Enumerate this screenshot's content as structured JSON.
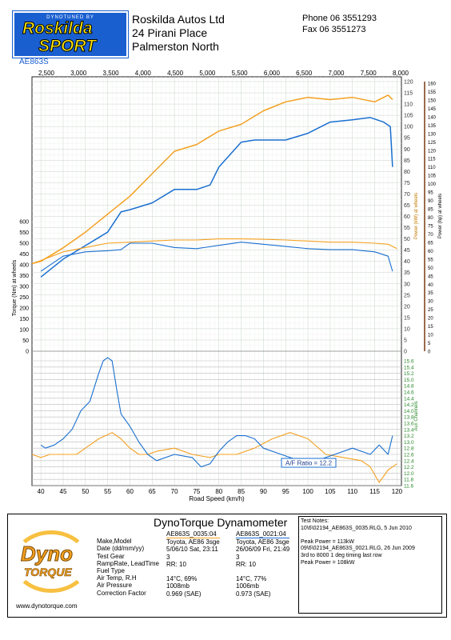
{
  "header": {
    "logo_top": "DYNOTUNED BY",
    "logo_line1": "Roskilda",
    "logo_line2": "SPORT",
    "address": [
      "Roskilda Autos Ltd",
      "24 Pirani Place",
      "Palmerston North"
    ],
    "phone": "Phone 06 3551293",
    "fax": "Fax    06 3551273",
    "code": "AE863S"
  },
  "chart_data": {
    "type": "line",
    "top_axis": {
      "label": "",
      "ticks": [
        "2,500",
        "3,000",
        "3,500",
        "4,000",
        "4,500",
        "5,000",
        "5,500",
        "6,000",
        "6,500",
        "7,000",
        "7,500",
        "8,000"
      ]
    },
    "x_axis": {
      "label": "Road Speed (km/h)",
      "ticks": [
        40,
        45,
        50,
        55,
        60,
        65,
        70,
        75,
        80,
        85,
        90,
        95,
        100,
        105,
        110,
        115,
        120
      ],
      "range": [
        38,
        121
      ]
    },
    "left_axis": {
      "label": "Torque (Nm) at wheels",
      "ticks": [
        0,
        50,
        100,
        150,
        200,
        250,
        300,
        350,
        400,
        450,
        500,
        550,
        600
      ],
      "range": [
        0,
        600
      ]
    },
    "power_axis": {
      "label": "Power (kW) at wheels",
      "ticks": [
        0,
        5,
        10,
        15,
        20,
        25,
        30,
        35,
        40,
        45,
        50,
        55,
        60,
        65,
        70,
        75,
        80,
        85,
        90,
        95,
        100,
        105,
        110,
        115,
        120
      ],
      "range": [
        0,
        120
      ]
    },
    "power_hp_axis": {
      "label": "Power (hp) at wheels",
      "ticks": [
        0,
        5,
        10,
        15,
        20,
        25,
        30,
        35,
        40,
        45,
        50,
        55,
        60,
        65,
        70,
        75,
        80,
        85,
        90,
        95,
        100,
        105,
        110,
        115,
        120,
        125,
        130,
        135,
        140,
        145,
        150,
        155,
        160
      ]
    },
    "aux_axis": {
      "label": "Aux Channels",
      "ticks": [
        "11.6",
        "11.8",
        "12.0",
        "12.2",
        "12.4",
        "12.6",
        "12.8",
        "13.0",
        "13.2",
        "13.4",
        "13.6",
        "13.8",
        "14.0",
        "14.2",
        "14.4",
        "14.6",
        "14.8",
        "15.0",
        "15.2",
        "15.4",
        "15.6"
      ],
      "range": [
        11.6,
        15.6
      ]
    },
    "annotation": "A/F Ratio = 12.2",
    "series": [
      {
        "name": "AE863S_0035:04",
        "color": "#f5a020",
        "kind": "power",
        "x": [
          38,
          40,
          45,
          50,
          55,
          60,
          65,
          70,
          75,
          80,
          85,
          90,
          95,
          100,
          105,
          110,
          115,
          118,
          119
        ],
        "y": [
          39,
          40,
          46,
          53,
          61,
          69,
          79,
          89,
          92,
          98,
          101,
          107,
          111,
          113,
          112,
          113,
          111,
          114,
          112
        ]
      },
      {
        "name": "AE863S_0021:04",
        "color": "#1a6fd0",
        "kind": "power",
        "x": [
          40,
          45,
          50,
          55,
          58,
          60,
          65,
          70,
          75,
          78,
          80,
          85,
          88,
          90,
          95,
          100,
          105,
          110,
          114,
          117,
          118.5,
          119
        ],
        "y": [
          33,
          41,
          47,
          53,
          62,
          63,
          66,
          72,
          72,
          74,
          82,
          93,
          94,
          94,
          94,
          97,
          102,
          103,
          104,
          102,
          100,
          82
        ]
      },
      {
        "name": "AE863S_0035:04",
        "color": "#f5a020",
        "kind": "torque",
        "x": [
          38,
          40,
          45,
          50,
          55,
          60,
          65,
          70,
          75,
          80,
          85,
          90,
          95,
          100,
          105,
          110,
          115,
          118,
          120
        ],
        "y": [
          405,
          420,
          460,
          480,
          500,
          505,
          510,
          515,
          515,
          520,
          520,
          518,
          515,
          510,
          505,
          505,
          500,
          495,
          475
        ]
      },
      {
        "name": "AE863S_0021:04",
        "color": "#1a6fd0",
        "kind": "torque",
        "x": [
          40,
          45,
          50,
          55,
          58,
          60,
          65,
          70,
          75,
          80,
          85,
          90,
          95,
          100,
          105,
          110,
          115,
          118,
          119
        ],
        "y": [
          370,
          440,
          460,
          465,
          470,
          500,
          500,
          480,
          475,
          490,
          505,
          495,
          485,
          475,
          470,
          470,
          460,
          440,
          370
        ]
      },
      {
        "name": "AE863S_0035:04",
        "color": "#f5a020",
        "kind": "afr",
        "x": [
          38,
          40,
          42,
          45,
          48,
          50,
          53,
          56,
          58,
          60,
          62,
          64,
          66,
          70,
          74,
          78,
          80,
          84,
          88,
          92,
          96,
          100,
          104,
          108,
          112,
          114,
          116,
          118,
          120
        ],
        "y": [
          12.6,
          12.5,
          12.6,
          12.6,
          12.6,
          12.8,
          13.1,
          13.3,
          13.1,
          12.8,
          12.6,
          12.6,
          12.7,
          12.8,
          12.6,
          12.5,
          12.6,
          12.6,
          12.8,
          13.1,
          13.3,
          13.1,
          12.6,
          12.5,
          12.4,
          12.2,
          11.7,
          12.1,
          12.3
        ]
      },
      {
        "name": "AE863S_0021:04",
        "color": "#1a6fd0",
        "kind": "afr",
        "x": [
          40,
          41,
          43,
          45,
          47,
          49,
          51,
          53,
          54,
          55,
          56,
          57,
          58,
          60,
          62,
          64,
          66,
          70,
          74,
          76,
          78,
          80,
          82,
          84,
          86,
          88,
          90,
          94,
          98,
          100,
          102,
          106,
          110,
          114,
          116,
          118,
          119
        ],
        "y": [
          12.9,
          12.8,
          12.9,
          13.1,
          13.4,
          14.0,
          14.3,
          15.2,
          15.6,
          15.7,
          15.6,
          14.7,
          13.9,
          13.5,
          13.0,
          12.6,
          12.4,
          12.6,
          12.5,
          12.2,
          12.3,
          12.7,
          13.0,
          13.2,
          13.2,
          13.1,
          12.8,
          12.6,
          12.4,
          12.2,
          12.4,
          12.6,
          12.8,
          12.6,
          12.9,
          12.6,
          13.2
        ]
      }
    ]
  },
  "footer": {
    "title": "DynoTorque Dynamometer",
    "logo_word1": "Dyno",
    "logo_word2": "TORQUE",
    "website": "www.dynotorque.com",
    "labels": [
      "Make,Model",
      "Date (dd/mm/yy)",
      "Test Gear",
      "RampRate, LeadTime",
      "Fuel Type",
      "Air Temp, R.H",
      "Air Pressure",
      "Correction Factor"
    ],
    "runA": [
      "AE863S_0035:04",
      "Toyota, AE86 3sge",
      "5/06/10 Sat, 23:11",
      "3",
      "RR: 10",
      "",
      "14°C,    69%",
      "1008mb",
      "0.969 (SAE)"
    ],
    "runB": [
      "AE863S_0021:04",
      "Toyota, AE86 3sge",
      "26/06/09 Fri, 21:49",
      "3",
      "RR: 10",
      "",
      "14°C,    77%",
      "1006mb",
      "0.973 (SAE)"
    ],
    "notes": [
      "Test Notes:",
      "10\\6\\02194_AE863S_0035.RLG, 5 Jun 2010",
      "",
      "Peak Power = 113kW",
      "09\\6\\02194_AE863S_0021.RLG, 26 Jun 2009",
      "3rd to 8000 1 deg timing last row",
      "Peak Power = 108kW"
    ]
  }
}
